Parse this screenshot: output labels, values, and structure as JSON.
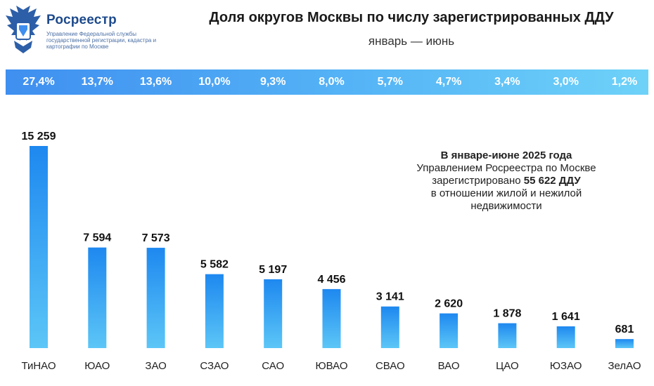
{
  "brand": {
    "name": "Росреестр",
    "subtitle": "Управление Федеральной службы государственной регистрации, кадастра и картографии по Москве"
  },
  "header": {
    "title": "Доля округов Москвы по числу зарегистрированных ДДУ",
    "subtitle": "январь — июнь"
  },
  "shares": [
    "27,4%",
    "13,7%",
    "13,6%",
    "10,0%",
    "9,3%",
    "8,0%",
    "5,7%",
    "4,7%",
    "3,4%",
    "3,0%",
    "1,2%"
  ],
  "note": {
    "line1": "В январе-июне 2025 года",
    "line2": "Управлением Росреестра по Москве",
    "line3_prefix": "зарегистрировано ",
    "line3_bold": "55 622 ДДУ",
    "line4": "в отношении жилой и нежилой",
    "line5": "недвижимости"
  },
  "colors": {
    "bar_top": "#1e88f0",
    "bar_bottom": "#5cc6f7",
    "share_bar_start": "#3f8ff0",
    "share_bar_end": "#6ed2f8",
    "brand": "#1d4a8c"
  },
  "chart_data": {
    "type": "bar",
    "title": "Доля округов Москвы по числу зарегистрированных ДДУ",
    "subtitle": "январь — июнь",
    "categories": [
      "ТиНАО",
      "ЮАО",
      "ЗАО",
      "СЗАО",
      "САО",
      "ЮВАО",
      "СВАО",
      "ВАО",
      "ЦАО",
      "ЮЗАО",
      "ЗелАО"
    ],
    "values": [
      15259,
      7594,
      7573,
      5582,
      5197,
      4456,
      3141,
      2620,
      1878,
      1641,
      681
    ],
    "value_labels": [
      "15 259",
      "7 594",
      "7 573",
      "5 582",
      "5 197",
      "4 456",
      "3 141",
      "2 620",
      "1 878",
      "1 641",
      "681"
    ],
    "ylim": [
      0,
      15259
    ],
    "grid": false,
    "legend": "none"
  }
}
